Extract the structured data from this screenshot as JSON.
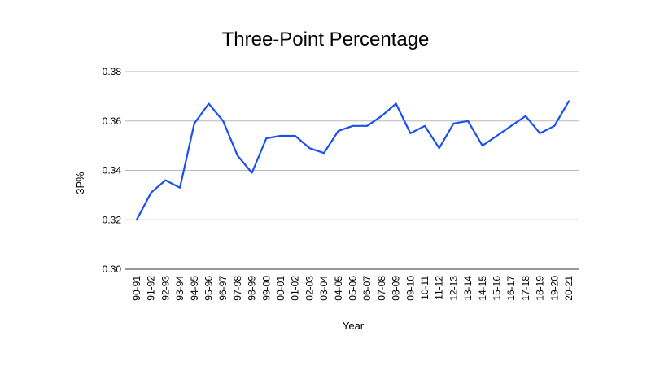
{
  "chart_data": {
    "type": "line",
    "title": "Three-Point Percentage",
    "xlabel": "Year",
    "ylabel": "3P%",
    "ylim": [
      0.3,
      0.38
    ],
    "yticks": [
      "0.30",
      "0.32",
      "0.34",
      "0.36",
      "0.38"
    ],
    "grid": true,
    "categories": [
      "90-91",
      "91-92",
      "92-93",
      "93-94",
      "94-95",
      "95-96",
      "96-97",
      "97-98",
      "98-99",
      "99-00",
      "00-01",
      "01-02",
      "02-03",
      "03-04",
      "04-05",
      "05-06",
      "06-07",
      "07-08",
      "08-09",
      "09-10",
      "10-11",
      "11-12",
      "12-13",
      "13-14",
      "14-15",
      "15-16",
      "16-17",
      "17-18",
      "18-19",
      "19-20",
      "20-21"
    ],
    "series": [
      {
        "color": "#1a4ff0",
        "values": [
          0.32,
          0.331,
          0.336,
          0.333,
          0.359,
          0.367,
          0.36,
          0.346,
          0.339,
          0.353,
          0.354,
          0.354,
          0.349,
          0.347,
          0.356,
          0.358,
          0.358,
          0.362,
          0.367,
          0.355,
          0.358,
          0.349,
          0.359,
          0.36,
          0.35,
          0.354,
          0.358,
          0.362,
          0.355,
          0.358,
          0.368
        ]
      }
    ]
  }
}
